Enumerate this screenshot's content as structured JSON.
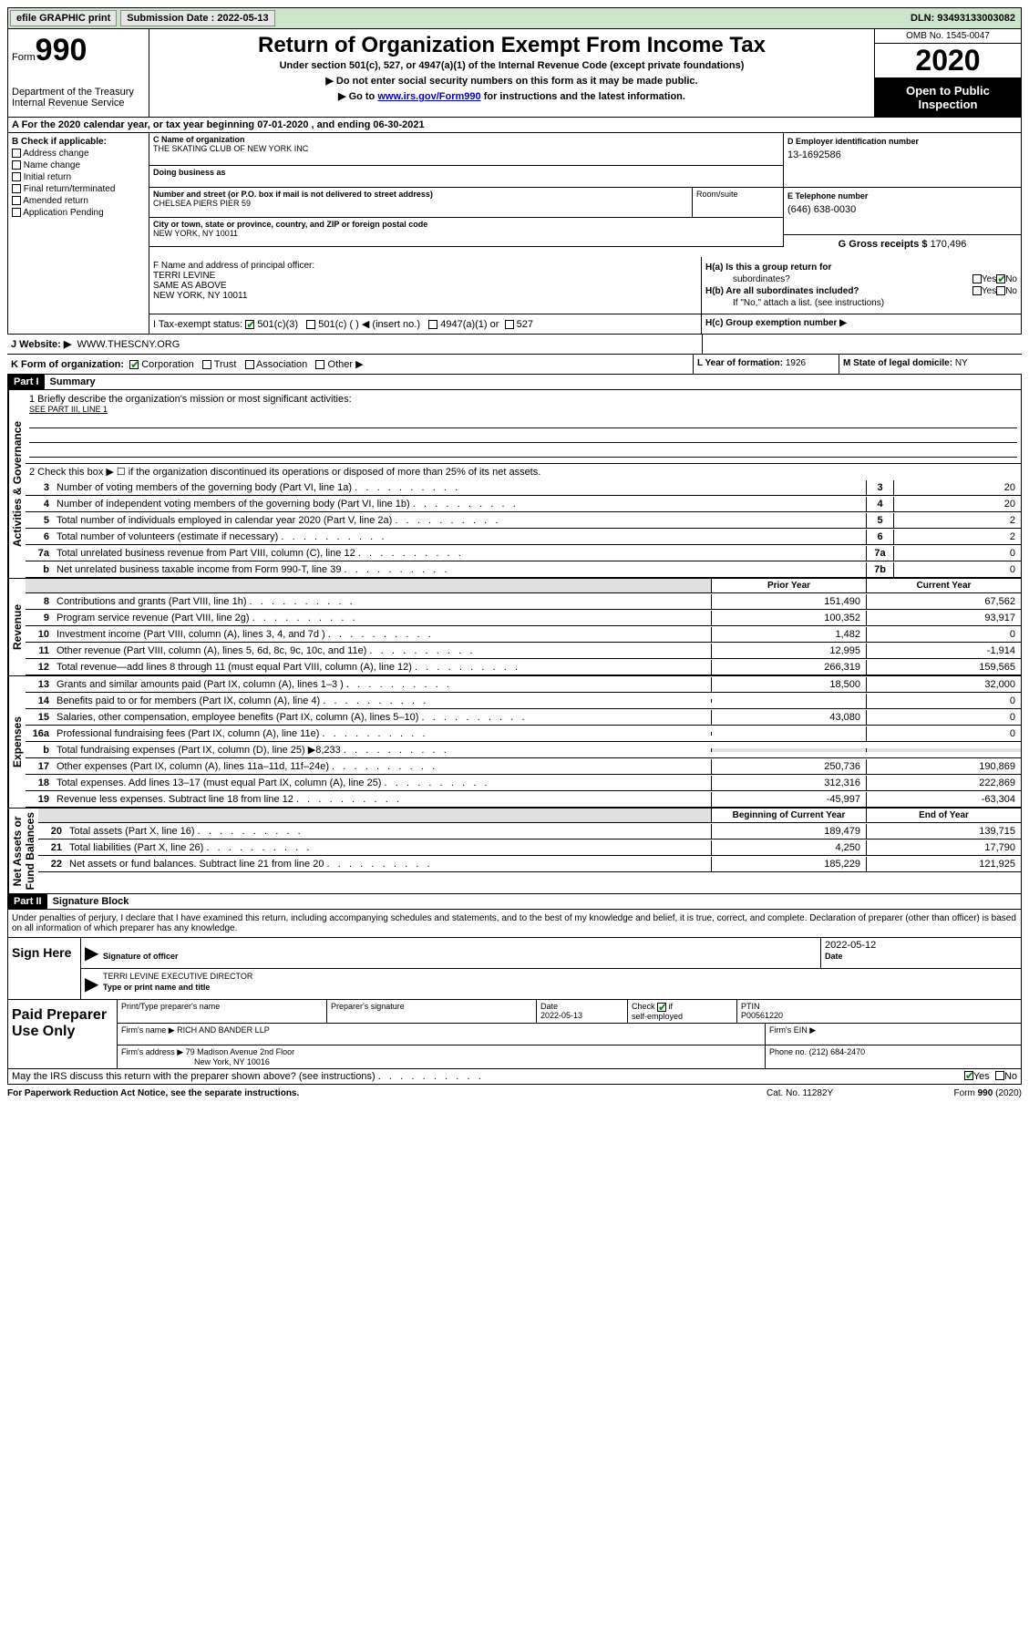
{
  "topbar": {
    "efile": "efile GRAPHIC print",
    "submission_label": "Submission Date :",
    "submission_date": "2022-05-13",
    "dln_label": "DLN:",
    "dln": "93493133003082"
  },
  "header": {
    "form_label": "Form",
    "form_num": "990",
    "dept": "Department of the Treasury\nInternal Revenue Service",
    "title": "Return of Organization Exempt From Income Tax",
    "subtitle": "Under section 501(c), 527, or 4947(a)(1) of the Internal Revenue Code (except private foundations)",
    "instr1": "▶ Do not enter social security numbers on this form as it may be made public.",
    "instr2_a": "▶ Go to ",
    "instr2_link": "www.irs.gov/Form990",
    "instr2_b": " for instructions and the latest information.",
    "omb": "OMB No. 1545-0047",
    "year": "2020",
    "public1": "Open to Public",
    "public2": "Inspection"
  },
  "row_a": "A For the 2020 calendar year, or tax year beginning 07-01-2020    , and ending 06-30-2021",
  "section_b": {
    "label": "B Check if applicable:",
    "opts": [
      "Address change",
      "Name change",
      "Initial return",
      "Final return/terminated",
      "Amended return",
      "Application Pending"
    ]
  },
  "section_c": {
    "name_label": "C Name of organization",
    "name": "THE SKATING CLUB OF NEW YORK INC",
    "dba_label": "Doing business as",
    "street_label": "Number and street (or P.O. box if mail is not delivered to street address)",
    "street": "CHELSEA PIERS PIER 59",
    "room_label": "Room/suite",
    "city_label": "City or town, state or province, country, and ZIP or foreign postal code",
    "city": "NEW YORK, NY  10011"
  },
  "section_d": {
    "label": "D Employer identification number",
    "value": "13-1692586"
  },
  "section_e": {
    "label": "E Telephone number",
    "value": "(646) 638-0030"
  },
  "section_g": {
    "label": "G Gross receipts $",
    "value": "170,496"
  },
  "section_f": {
    "label": "F Name and address of principal officer:",
    "name": "TERRI LEVINE",
    "addr1": "SAME AS ABOVE",
    "addr2": "NEW YORK, NY  10011"
  },
  "section_h": {
    "ha_label": "H(a)  Is this a group return for",
    "ha_sub": "subordinates?",
    "hb_label": "H(b)  Are all subordinates included?",
    "h_note": "If \"No,\" attach a list. (see instructions)",
    "hc_label": "H(c)  Group exemption number ▶",
    "yes": "Yes",
    "no": "No"
  },
  "row_i": {
    "label": "I    Tax-exempt status:",
    "opts": [
      "501(c)(3)",
      "501(c) (  ) ◀ (insert no.)",
      "4947(a)(1) or",
      "527"
    ]
  },
  "row_j": {
    "label": "J    Website: ▶",
    "value": "WWW.THESCNY.ORG"
  },
  "row_k": {
    "label": "K Form of organization:",
    "opts": [
      "Corporation",
      "Trust",
      "Association",
      "Other ▶"
    ]
  },
  "row_l": {
    "label": "L Year of formation:",
    "value": "1926"
  },
  "row_m": {
    "label": "M State of legal domicile:",
    "value": "NY"
  },
  "part1": {
    "header": "Part I",
    "title": "Summary",
    "side_gov": "Activities & Governance",
    "side_rev": "Revenue",
    "side_exp": "Expenses",
    "side_net": "Net Assets or\nFund Balances",
    "line1_label": "1   Briefly describe the organization's mission or most significant activities:",
    "line1_value": "SEE PART III, LINE 1",
    "line2": "2   Check this box ▶ ☐  if the organization discontinued its operations or disposed of more than 25% of its net assets.",
    "gov_lines": [
      {
        "n": "3",
        "t": "Number of voting members of the governing body (Part VI, line 1a)",
        "b": "3",
        "v": "20"
      },
      {
        "n": "4",
        "t": "Number of independent voting members of the governing body (Part VI, line 1b)",
        "b": "4",
        "v": "20"
      },
      {
        "n": "5",
        "t": "Total number of individuals employed in calendar year 2020 (Part V, line 2a)",
        "b": "5",
        "v": "2"
      },
      {
        "n": "6",
        "t": "Total number of volunteers (estimate if necessary)",
        "b": "6",
        "v": "2"
      },
      {
        "n": "7a",
        "t": "Total unrelated business revenue from Part VIII, column (C), line 12",
        "b": "7a",
        "v": "0"
      },
      {
        "n": "b",
        "t": "Net unrelated business taxable income from Form 990-T, line 39",
        "b": "7b",
        "v": "0"
      }
    ],
    "col_prior": "Prior Year",
    "col_curr": "Current Year",
    "rev_lines": [
      {
        "n": "8",
        "t": "Contributions and grants (Part VIII, line 1h)",
        "p": "151,490",
        "c": "67,562"
      },
      {
        "n": "9",
        "t": "Program service revenue (Part VIII, line 2g)",
        "p": "100,352",
        "c": "93,917"
      },
      {
        "n": "10",
        "t": "Investment income (Part VIII, column (A), lines 3, 4, and 7d )",
        "p": "1,482",
        "c": "0"
      },
      {
        "n": "11",
        "t": "Other revenue (Part VIII, column (A), lines 5, 6d, 8c, 9c, 10c, and 11e)",
        "p": "12,995",
        "c": "-1,914"
      },
      {
        "n": "12",
        "t": "Total revenue—add lines 8 through 11 (must equal Part VIII, column (A), line 12)",
        "p": "266,319",
        "c": "159,565"
      }
    ],
    "exp_lines": [
      {
        "n": "13",
        "t": "Grants and similar amounts paid (Part IX, column (A), lines 1–3 )",
        "p": "18,500",
        "c": "32,000"
      },
      {
        "n": "14",
        "t": "Benefits paid to or for members (Part IX, column (A), line 4)",
        "p": "",
        "c": "0"
      },
      {
        "n": "15",
        "t": "Salaries, other compensation, employee benefits (Part IX, column (A), lines 5–10)",
        "p": "43,080",
        "c": "0"
      },
      {
        "n": "16a",
        "t": "Professional fundraising fees (Part IX, column (A), line 11e)",
        "p": "",
        "c": "0"
      },
      {
        "n": "b",
        "t": "Total fundraising expenses (Part IX, column (D), line 25) ▶8,233",
        "p": "shaded",
        "c": "shaded"
      },
      {
        "n": "17",
        "t": "Other expenses (Part IX, column (A), lines 11a–11d, 11f–24e)",
        "p": "250,736",
        "c": "190,869"
      },
      {
        "n": "18",
        "t": "Total expenses. Add lines 13–17 (must equal Part IX, column (A), line 25)",
        "p": "312,316",
        "c": "222,869"
      },
      {
        "n": "19",
        "t": "Revenue less expenses. Subtract line 18 from line 12",
        "p": "-45,997",
        "c": "-63,304"
      }
    ],
    "col_begin": "Beginning of Current Year",
    "col_end": "End of Year",
    "net_lines": [
      {
        "n": "20",
        "t": "Total assets (Part X, line 16)",
        "p": "189,479",
        "c": "139,715"
      },
      {
        "n": "21",
        "t": "Total liabilities (Part X, line 26)",
        "p": "4,250",
        "c": "17,790"
      },
      {
        "n": "22",
        "t": "Net assets or fund balances. Subtract line 21 from line 20",
        "p": "185,229",
        "c": "121,925"
      }
    ]
  },
  "part2": {
    "header": "Part II",
    "title": "Signature Block",
    "perjury": "Under penalties of perjury, I declare that I have examined this return, including accompanying schedules and statements, and to the best of my knowledge and belief, it is true, correct, and complete. Declaration of preparer (other than officer) is based on all information of which preparer has any knowledge."
  },
  "sign": {
    "left": "Sign Here",
    "sig_label": "Signature of officer",
    "date_label": "Date",
    "date": "2022-05-12",
    "name": "TERRI LEVINE  EXECUTIVE DIRECTOR",
    "name_label": "Type or print name and title"
  },
  "preparer": {
    "left": "Paid Preparer Use Only",
    "name_label": "Print/Type preparer's name",
    "sig_label": "Preparer's signature",
    "date_label": "Date",
    "date": "2022-05-13",
    "check_label": "Check ☑ if self-employed",
    "ptin_label": "PTIN",
    "ptin": "P00561220",
    "firm_name_label": "Firm's name    ▶",
    "firm_name": "RICH AND BANDER LLP",
    "firm_ein_label": "Firm's EIN ▶",
    "firm_addr_label": "Firm's address ▶",
    "firm_addr1": "79 Madison Avenue 2nd Floor",
    "firm_addr2": "New York, NY  10016",
    "phone_label": "Phone no.",
    "phone": "(212) 684-2470"
  },
  "discuss": {
    "text": "May the IRS discuss this return with the preparer shown above? (see instructions)",
    "yes": "Yes",
    "no": "No"
  },
  "footer": {
    "left": "For Paperwork Reduction Act Notice, see the separate instructions.",
    "mid": "Cat. No. 11282Y",
    "right_a": "Form ",
    "right_b": "990",
    "right_c": " (2020)"
  }
}
